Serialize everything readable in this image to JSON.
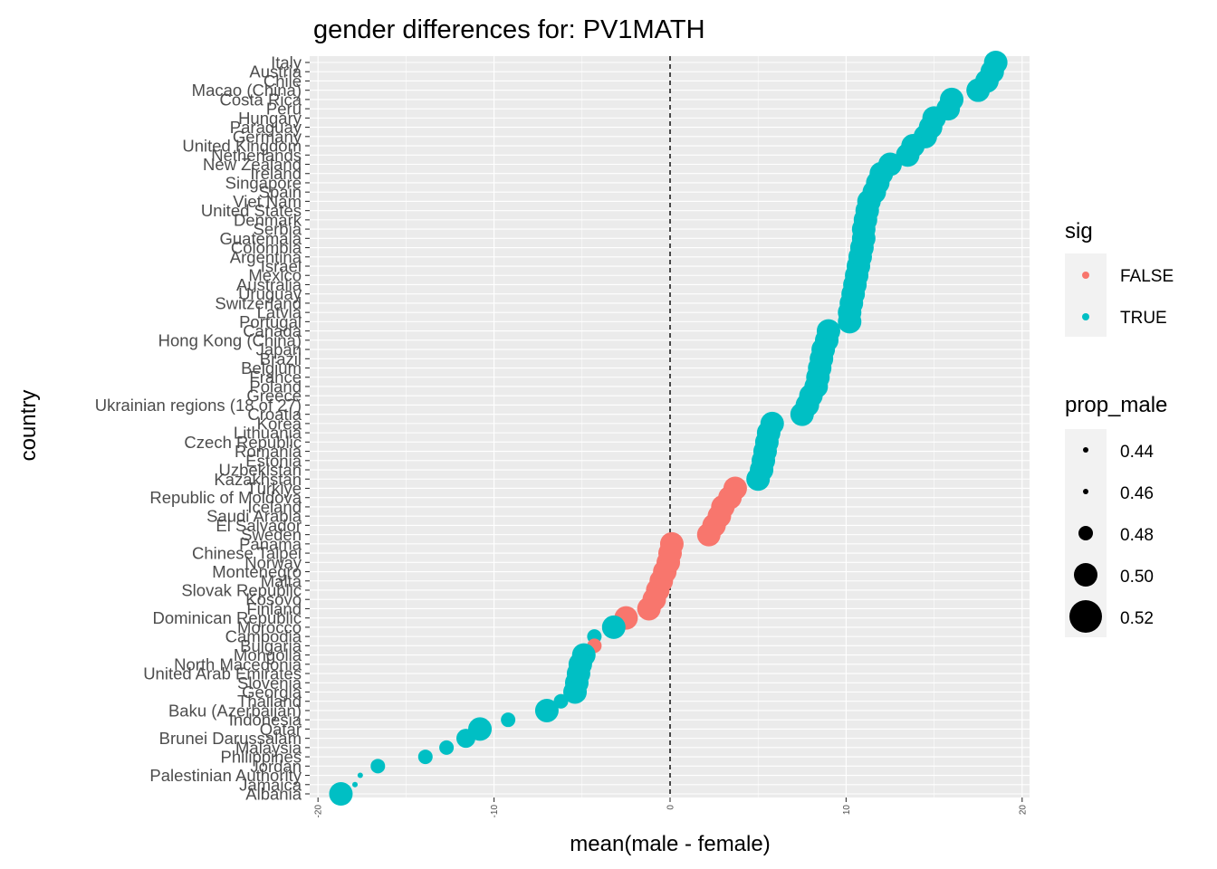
{
  "chart_data": {
    "type": "scatter",
    "title": "gender differences for: PV1MATH",
    "xlabel": "mean(male - female)",
    "ylabel": "country",
    "xlim": [
      -20,
      20
    ],
    "x_ticks": [
      -20,
      -10,
      0,
      10,
      20
    ],
    "x_tick_labels": [
      "-20",
      "-10",
      "0",
      "10",
      "20"
    ],
    "reference_line_x": 0,
    "colors": {
      "FALSE": "#F8766D",
      "TRUE": "#00BFC4",
      "panel": "#EBEBEB",
      "grid": "#FFFFFF"
    },
    "legend": {
      "position": "right",
      "color_title": "sig",
      "color_entries": [
        "FALSE",
        "TRUE"
      ],
      "size_title": "prop_male",
      "size_entries": [
        0.44,
        0.46,
        0.48,
        0.5,
        0.52
      ],
      "size_entry_labels": [
        "0.44",
        "0.46",
        "0.48",
        "0.50",
        "0.52"
      ]
    },
    "y_labels": [
      "Italy",
      "Austria",
      "Chile",
      "Macao (China)",
      "Costa Rica",
      "Peru",
      "Hungary",
      "Paraguay",
      "Germany",
      "United Kingdom",
      "Netherlands",
      "New Zealand",
      "Ireland",
      "Singapore",
      "Spain",
      "Viet Nam",
      "United States",
      "Denmark",
      "Serbia",
      "Guatemala",
      "Colombia",
      "Argentina",
      "Israel",
      "Mexico",
      "Australia",
      "Uruguay",
      "Switzerland",
      "Latvia",
      "Portugal",
      "Canada",
      "Hong Kong (China)",
      "Japan",
      "Brazil",
      "Belgium",
      "France",
      "Poland",
      "Greece",
      "Ukrainian regions (18 of 27)",
      "Croatia",
      "Korea",
      "Lithuania",
      "Czech Republic",
      "Romania",
      "Estonia",
      "Uzbekistan",
      "Kazakhstan",
      "Türkiye",
      "Republic of Moldova",
      "Iceland",
      "Saudi Arabia",
      "El Salvador",
      "Sweden",
      "Panama",
      "Chinese Taipei",
      "Norway",
      "Montenegro",
      "Malta",
      "Slovak Republic",
      "Kosovo",
      "Finland",
      "Dominican Republic",
      "Morocco",
      "Cambodia",
      "Bulgaria",
      "Mongolia",
      "North Macedonia",
      "United Arab Emirates",
      "Slovenia",
      "Georgia",
      "Thailand",
      "Baku (Azerbaijan)",
      "Indonesia",
      "Qatar",
      "Brunei Darussalam",
      "Malaysia",
      "Philippines",
      "Jordan",
      "Palestinian Authority",
      "Jamaica",
      "Albania"
    ],
    "points": [
      {
        "country": "Italy",
        "x": 18.5,
        "prop_male": 0.5,
        "sig": "TRUE"
      },
      {
        "country": "Austria",
        "x": 18.3,
        "prop_male": 0.5,
        "sig": "TRUE"
      },
      {
        "country": "Chile",
        "x": 18.0,
        "prop_male": 0.5,
        "sig": "TRUE"
      },
      {
        "country": "Macao (China)",
        "x": 17.5,
        "prop_male": 0.5,
        "sig": "TRUE"
      },
      {
        "country": "Costa Rica",
        "x": 16.0,
        "prop_male": 0.5,
        "sig": "TRUE"
      },
      {
        "country": "Peru",
        "x": 15.8,
        "prop_male": 0.5,
        "sig": "TRUE"
      },
      {
        "country": "Hungary",
        "x": 15.0,
        "prop_male": 0.5,
        "sig": "TRUE"
      },
      {
        "country": "Paraguay",
        "x": 14.8,
        "prop_male": 0.5,
        "sig": "TRUE"
      },
      {
        "country": "Germany",
        "x": 14.5,
        "prop_male": 0.5,
        "sig": "TRUE"
      },
      {
        "country": "United Kingdom",
        "x": 13.8,
        "prop_male": 0.5,
        "sig": "TRUE"
      },
      {
        "country": "Netherlands",
        "x": 13.5,
        "prop_male": 0.5,
        "sig": "TRUE"
      },
      {
        "country": "New Zealand",
        "x": 12.5,
        "prop_male": 0.5,
        "sig": "TRUE"
      },
      {
        "country": "Ireland",
        "x": 12.0,
        "prop_male": 0.5,
        "sig": "TRUE"
      },
      {
        "country": "Singapore",
        "x": 11.8,
        "prop_male": 0.5,
        "sig": "TRUE"
      },
      {
        "country": "Spain",
        "x": 11.6,
        "prop_male": 0.5,
        "sig": "TRUE"
      },
      {
        "country": "Viet Nam",
        "x": 11.3,
        "prop_male": 0.5,
        "sig": "TRUE"
      },
      {
        "country": "United States",
        "x": 11.2,
        "prop_male": 0.5,
        "sig": "TRUE"
      },
      {
        "country": "Denmark",
        "x": 11.1,
        "prop_male": 0.5,
        "sig": "TRUE"
      },
      {
        "country": "Serbia",
        "x": 11.0,
        "prop_male": 0.5,
        "sig": "TRUE"
      },
      {
        "country": "Guatemala",
        "x": 11.0,
        "prop_male": 0.5,
        "sig": "TRUE"
      },
      {
        "country": "Colombia",
        "x": 10.9,
        "prop_male": 0.5,
        "sig": "TRUE"
      },
      {
        "country": "Argentina",
        "x": 10.8,
        "prop_male": 0.5,
        "sig": "TRUE"
      },
      {
        "country": "Israel",
        "x": 10.7,
        "prop_male": 0.5,
        "sig": "TRUE"
      },
      {
        "country": "Mexico",
        "x": 10.6,
        "prop_male": 0.5,
        "sig": "TRUE"
      },
      {
        "country": "Australia",
        "x": 10.5,
        "prop_male": 0.5,
        "sig": "TRUE"
      },
      {
        "country": "Uruguay",
        "x": 10.4,
        "prop_male": 0.5,
        "sig": "TRUE"
      },
      {
        "country": "Switzerland",
        "x": 10.3,
        "prop_male": 0.5,
        "sig": "TRUE"
      },
      {
        "country": "Latvia",
        "x": 10.2,
        "prop_male": 0.5,
        "sig": "TRUE"
      },
      {
        "country": "Portugal",
        "x": 10.2,
        "prop_male": 0.5,
        "sig": "TRUE"
      },
      {
        "country": "Canada",
        "x": 9.0,
        "prop_male": 0.5,
        "sig": "TRUE"
      },
      {
        "country": "Hong Kong (China)",
        "x": 8.9,
        "prop_male": 0.5,
        "sig": "TRUE"
      },
      {
        "country": "Japan",
        "x": 8.7,
        "prop_male": 0.5,
        "sig": "TRUE"
      },
      {
        "country": "Brazil",
        "x": 8.6,
        "prop_male": 0.5,
        "sig": "TRUE"
      },
      {
        "country": "Belgium",
        "x": 8.5,
        "prop_male": 0.5,
        "sig": "TRUE"
      },
      {
        "country": "France",
        "x": 8.4,
        "prop_male": 0.5,
        "sig": "TRUE"
      },
      {
        "country": "Poland",
        "x": 8.3,
        "prop_male": 0.5,
        "sig": "TRUE"
      },
      {
        "country": "Greece",
        "x": 8.0,
        "prop_male": 0.5,
        "sig": "TRUE"
      },
      {
        "country": "Ukrainian regions (18 of 27)",
        "x": 7.8,
        "prop_male": 0.5,
        "sig": "TRUE"
      },
      {
        "country": "Croatia",
        "x": 7.5,
        "prop_male": 0.5,
        "sig": "TRUE"
      },
      {
        "country": "Korea",
        "x": 5.8,
        "prop_male": 0.5,
        "sig": "TRUE"
      },
      {
        "country": "Lithuania",
        "x": 5.6,
        "prop_male": 0.5,
        "sig": "TRUE"
      },
      {
        "country": "Czech Republic",
        "x": 5.5,
        "prop_male": 0.5,
        "sig": "TRUE"
      },
      {
        "country": "Romania",
        "x": 5.4,
        "prop_male": 0.5,
        "sig": "TRUE"
      },
      {
        "country": "Estonia",
        "x": 5.3,
        "prop_male": 0.5,
        "sig": "TRUE"
      },
      {
        "country": "Uzbekistan",
        "x": 5.2,
        "prop_male": 0.5,
        "sig": "TRUE"
      },
      {
        "country": "Kazakhstan",
        "x": 5.0,
        "prop_male": 0.5,
        "sig": "TRUE"
      },
      {
        "country": "Türkiye",
        "x": 3.7,
        "prop_male": 0.5,
        "sig": "FALSE"
      },
      {
        "country": "Republic of Moldova",
        "x": 3.4,
        "prop_male": 0.5,
        "sig": "FALSE"
      },
      {
        "country": "Iceland",
        "x": 3.0,
        "prop_male": 0.5,
        "sig": "FALSE"
      },
      {
        "country": "Saudi Arabia",
        "x": 2.8,
        "prop_male": 0.5,
        "sig": "FALSE"
      },
      {
        "country": "El Salvador",
        "x": 2.5,
        "prop_male": 0.5,
        "sig": "FALSE"
      },
      {
        "country": "Sweden",
        "x": 2.2,
        "prop_male": 0.5,
        "sig": "FALSE"
      },
      {
        "country": "Panama",
        "x": 0.1,
        "prop_male": 0.5,
        "sig": "FALSE"
      },
      {
        "country": "Chinese Taipei",
        "x": 0.0,
        "prop_male": 0.5,
        "sig": "FALSE"
      },
      {
        "country": "Norway",
        "x": -0.1,
        "prop_male": 0.5,
        "sig": "FALSE"
      },
      {
        "country": "Montenegro",
        "x": -0.3,
        "prop_male": 0.5,
        "sig": "FALSE"
      },
      {
        "country": "Malta",
        "x": -0.5,
        "prop_male": 0.5,
        "sig": "FALSE"
      },
      {
        "country": "Slovak Republic",
        "x": -0.7,
        "prop_male": 0.5,
        "sig": "FALSE"
      },
      {
        "country": "Kosovo",
        "x": -0.9,
        "prop_male": 0.5,
        "sig": "FALSE"
      },
      {
        "country": "Finland",
        "x": -1.2,
        "prop_male": 0.5,
        "sig": "FALSE"
      },
      {
        "country": "Dominican Republic",
        "x": -2.5,
        "prop_male": 0.5,
        "sig": "FALSE"
      },
      {
        "country": "Morocco",
        "x": -3.2,
        "prop_male": 0.5,
        "sig": "TRUE"
      },
      {
        "country": "Cambodia",
        "x": -4.3,
        "prop_male": 0.48,
        "sig": "TRUE"
      },
      {
        "country": "Bulgaria",
        "x": -4.3,
        "prop_male": 0.48,
        "sig": "FALSE"
      },
      {
        "country": "Mongolia",
        "x": -4.9,
        "prop_male": 0.5,
        "sig": "TRUE"
      },
      {
        "country": "North Macedonia",
        "x": -5.1,
        "prop_male": 0.5,
        "sig": "TRUE"
      },
      {
        "country": "United Arab Emirates",
        "x": -5.2,
        "prop_male": 0.5,
        "sig": "TRUE"
      },
      {
        "country": "Slovenia",
        "x": -5.3,
        "prop_male": 0.5,
        "sig": "TRUE"
      },
      {
        "country": "Georgia",
        "x": -5.4,
        "prop_male": 0.5,
        "sig": "TRUE"
      },
      {
        "country": "Thailand",
        "x": -6.2,
        "prop_male": 0.48,
        "sig": "TRUE"
      },
      {
        "country": "Baku (Azerbaijan)",
        "x": -7.0,
        "prop_male": 0.5,
        "sig": "TRUE"
      },
      {
        "country": "Indonesia",
        "x": -9.2,
        "prop_male": 0.48,
        "sig": "TRUE"
      },
      {
        "country": "Qatar",
        "x": -10.8,
        "prop_male": 0.5,
        "sig": "TRUE"
      },
      {
        "country": "Brunei Darussalam",
        "x": -11.6,
        "prop_male": 0.49,
        "sig": "TRUE"
      },
      {
        "country": "Malaysia",
        "x": -12.7,
        "prop_male": 0.48,
        "sig": "TRUE"
      },
      {
        "country": "Philippines",
        "x": -13.9,
        "prop_male": 0.48,
        "sig": "TRUE"
      },
      {
        "country": "Jordan",
        "x": -16.6,
        "prop_male": 0.48,
        "sig": "TRUE"
      },
      {
        "country": "Palestinian Authority",
        "x": -17.6,
        "prop_male": 0.44,
        "sig": "TRUE"
      },
      {
        "country": "Jamaica",
        "x": -17.9,
        "prop_male": 0.44,
        "sig": "TRUE"
      },
      {
        "country": "Albania",
        "x": -18.7,
        "prop_male": 0.5,
        "sig": "TRUE"
      }
    ]
  }
}
